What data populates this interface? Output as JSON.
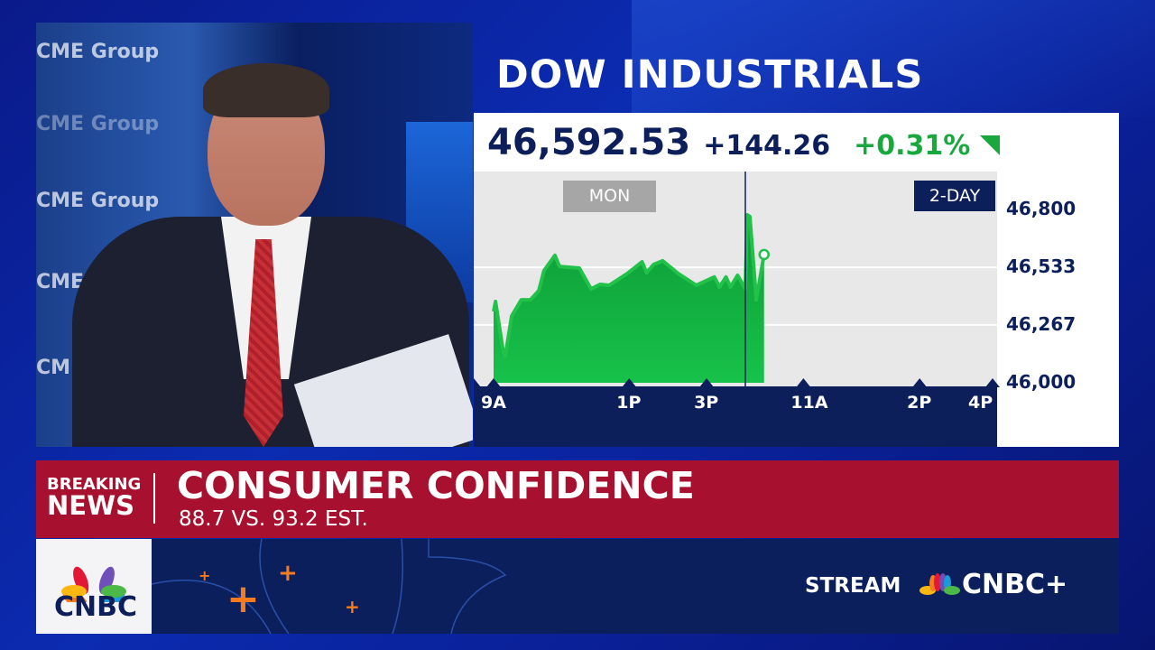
{
  "video": {
    "wall_text": [
      "CME Group",
      "CME Group",
      "CME Group",
      "CME Gr",
      "CME"
    ]
  },
  "graphic": {
    "title": "DOW INDUSTRIALS",
    "price": "46,592.53",
    "change": "+144.26",
    "percent": "+0.31%",
    "direction_icon": "up-triangle-icon",
    "day_label": "MON",
    "range_label": "2-DAY",
    "colors": {
      "up": "#19a83d",
      "navy": "#0c1f5a",
      "news_red": "#a8102f"
    }
  },
  "chart_data": {
    "type": "area",
    "title": "DOW INDUSTRIALS",
    "ylim": [
      46000,
      46800
    ],
    "y_ticks": [
      "46,800",
      "46,533",
      "46,267",
      "46,000"
    ],
    "y_tick_values": [
      46800,
      46533,
      46267,
      46000
    ],
    "x_ticks": [
      {
        "label": "9A",
        "t": "Mon 09:30"
      },
      {
        "label": "1P",
        "t": "Mon 13:00"
      },
      {
        "label": "3P",
        "t": "Mon 15:00"
      },
      {
        "label": "11A",
        "t": "Tue 11:00"
      },
      {
        "label": "2P",
        "t": "Tue 14:00"
      },
      {
        "label": "4P",
        "t": "Tue 16:00"
      }
    ],
    "sessions": [
      "Mon 09:30-16:00",
      "Tue 09:30-16:00"
    ],
    "grid": true,
    "series": [
      {
        "points": [
          [
            "Mon 09:30",
            46329
          ],
          [
            "Mon 09:33",
            46375
          ],
          [
            "Mon 09:45",
            46142
          ],
          [
            "Mon 09:48",
            46121
          ],
          [
            "Mon 09:58",
            46308
          ],
          [
            "Mon 10:13",
            46383
          ],
          [
            "Mon 10:27",
            46383
          ],
          [
            "Mon 10:40",
            46425
          ],
          [
            "Mon 10:48",
            46517
          ],
          [
            "Mon 11:05",
            46588
          ],
          [
            "Mon 11:12",
            46537
          ],
          [
            "Mon 11:43",
            46529
          ],
          [
            "Mon 12:01",
            46433
          ],
          [
            "Mon 12:15",
            46454
          ],
          [
            "Mon 12:29",
            46450
          ],
          [
            "Mon 12:57",
            46504
          ],
          [
            "Mon 13:20",
            46558
          ],
          [
            "Mon 13:27",
            46508
          ],
          [
            "Mon 13:38",
            46546
          ],
          [
            "Mon 13:52",
            46563
          ],
          [
            "Mon 14:16",
            46504
          ],
          [
            "Mon 14:44",
            46450
          ],
          [
            "Mon 15:12",
            46488
          ],
          [
            "Mon 15:20",
            46442
          ],
          [
            "Mon 15:30",
            46488
          ],
          [
            "Mon 15:37",
            46442
          ],
          [
            "Mon 15:48",
            46496
          ],
          [
            "Mon 16:00",
            46433
          ],
          [
            "Tue 09:33",
            46775
          ],
          [
            "Tue 09:37",
            46767
          ],
          [
            "Tue 09:47",
            46383
          ],
          [
            "Tue 09:59",
            46592
          ]
        ]
      }
    ]
  },
  "news": {
    "tag_line1": "BREAKING",
    "tag_line2": "NEWS",
    "headline": "CONSUMER CONFIDENCE",
    "subhead": "88.7 VS. 93.2 EST."
  },
  "footer": {
    "logo": "CNBC",
    "stream_label": "STREAM",
    "brand": "CNBC+"
  }
}
